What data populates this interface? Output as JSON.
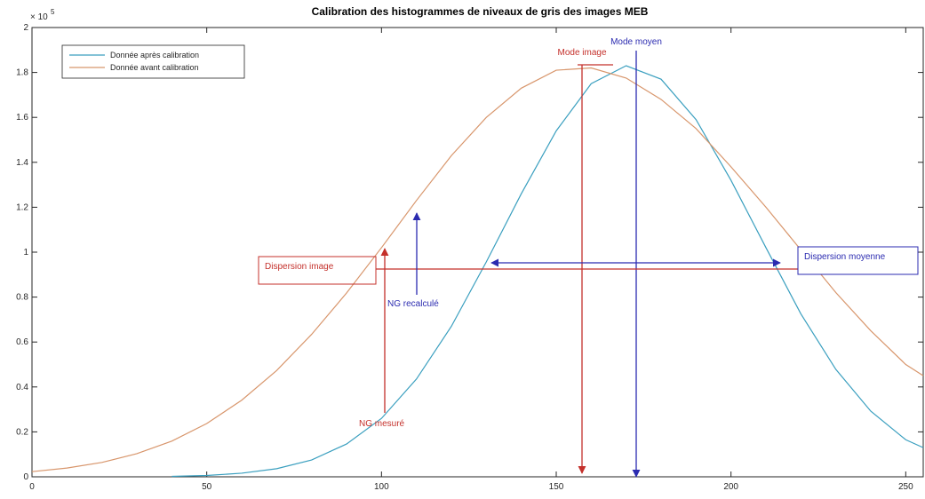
{
  "chart_data": {
    "type": "line",
    "title": "Calibration des histogrammes de niveaux de gris des images MEB",
    "y_multiplier": "× 10",
    "y_multiplier_exp": "5",
    "x": [
      0,
      10,
      20,
      30,
      40,
      50,
      60,
      70,
      80,
      90,
      100,
      110,
      120,
      130,
      140,
      150,
      160,
      170,
      180,
      190,
      200,
      210,
      220,
      230,
      240,
      250,
      255
    ],
    "series": [
      {
        "name": "Donnée après calibration",
        "color": "#3a9fbf",
        "values": [
          null,
          null,
          null,
          null,
          0.002,
          0.006,
          0.016,
          0.036,
          0.075,
          0.146,
          0.26,
          0.435,
          0.67,
          0.957,
          1.26,
          1.54,
          1.75,
          1.83,
          1.77,
          1.59,
          1.32,
          1.02,
          0.725,
          0.478,
          0.292,
          0.165,
          0.13
        ]
      },
      {
        "name": "Donnée avant calibration",
        "color": "#d8966c",
        "values": [
          0.023,
          0.039,
          0.064,
          0.103,
          0.159,
          0.237,
          0.341,
          0.473,
          0.634,
          0.818,
          1.02,
          1.23,
          1.43,
          1.6,
          1.73,
          1.81,
          1.82,
          1.775,
          1.68,
          1.55,
          1.38,
          1.2,
          1.01,
          0.82,
          0.65,
          0.5,
          0.45
        ]
      }
    ],
    "xlim": [
      0,
      255
    ],
    "ylim": [
      0,
      2
    ],
    "xticks": [
      0,
      50,
      100,
      150,
      200,
      250
    ],
    "yticks": [
      0,
      0.2,
      0.4,
      0.6,
      0.8,
      1,
      1.2,
      1.4,
      1.6,
      1.8,
      2
    ],
    "grid": false,
    "legend": "upper left",
    "annotations": [
      {
        "text": "Mode moyen",
        "color": "#2b2bb0"
      },
      {
        "text": "Mode image",
        "color": "#c4302b"
      },
      {
        "text": "Dispersion image",
        "color": "#c4302b"
      },
      {
        "text": "Dispersion moyenne",
        "color": "#2b2bb0"
      },
      {
        "text": "NG recalculé",
        "color": "#2b2bb0"
      },
      {
        "text": "NG mesuré",
        "color": "#c4302b"
      }
    ]
  }
}
